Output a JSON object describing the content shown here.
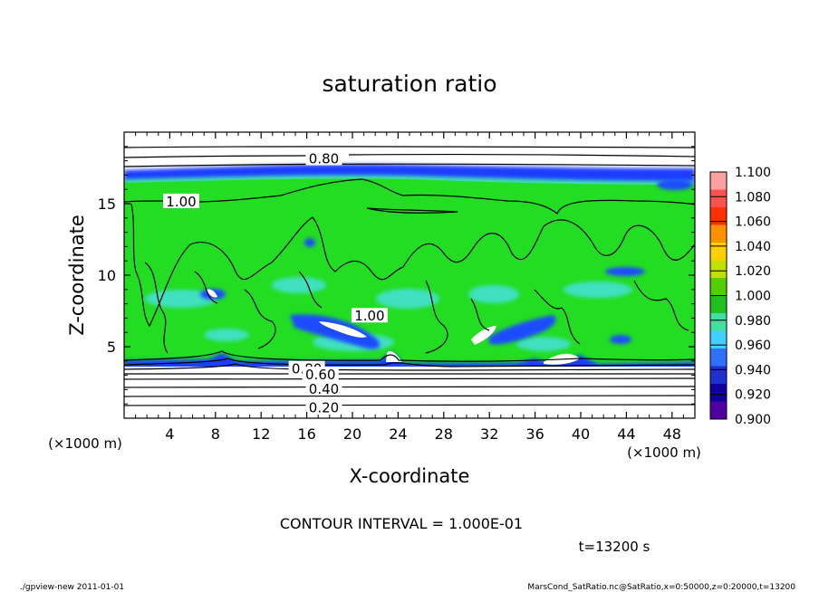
{
  "chart_data": {
    "type": "heatmap",
    "title": "saturation ratio",
    "xlabel": "X-coordinate",
    "ylabel": "Z-coordinate",
    "x_unit": "(×1000 m)",
    "z_unit": "(×1000 m)",
    "xlim": [
      0,
      50
    ],
    "zlim": [
      0,
      20
    ],
    "x_ticks": [
      "4",
      "8",
      "12",
      "16",
      "20",
      "24",
      "28",
      "32",
      "36",
      "40",
      "44",
      "48"
    ],
    "z_ticks": [
      "5",
      "10",
      "15"
    ],
    "x_tick_values": [
      4,
      8,
      12,
      16,
      20,
      24,
      28,
      32,
      36,
      40,
      44,
      48
    ],
    "z_tick_values": [
      5,
      10,
      15
    ],
    "colorbar": {
      "labels": [
        "1.100",
        "1.080",
        "1.060",
        "1.040",
        "1.020",
        "1.000",
        "0.980",
        "0.960",
        "0.940",
        "0.920",
        "0.900"
      ],
      "colors": [
        "#ffa0a0",
        "#ff5050",
        "#ff3000",
        "#ff9000",
        "#ffd000",
        "#c0e000",
        "#50d000",
        "#20c020",
        "#40e0a0",
        "#40d0ff",
        "#3070ff",
        "#2030d0",
        "#1000a0",
        "#5000a0"
      ],
      "min": 0.9,
      "max": 1.1,
      "step": 0.02
    },
    "contour_labels": [
      {
        "text": "0.80",
        "x": 17.5,
        "z": 18.2
      },
      {
        "text": "1.00",
        "x": 5,
        "z": 15.2
      },
      {
        "text": "1.00",
        "x": 21.5,
        "z": 7.2
      },
      {
        "text": "0.80",
        "x": 16,
        "z": 3.5
      },
      {
        "text": "0.60",
        "x": 17.2,
        "z": 3.1
      },
      {
        "text": "0.40",
        "x": 17.5,
        "z": 2.1
      },
      {
        "text": "0.20",
        "x": 17.5,
        "z": 0.8
      }
    ],
    "contour_interval_text": "CONTOUR INTERVAL = 1.000E-01",
    "time_label": "t=13200 s"
  },
  "footer": {
    "left": "./gpview-new   2011-01-01",
    "right": "MarsCond_SatRatio.nc@SatRatio,x=0:50000,z=0:20000,t=13200"
  }
}
